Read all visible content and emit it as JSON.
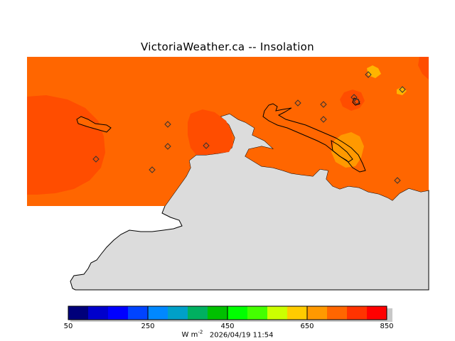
{
  "title": "VictoriaWeather.ca -- Insolation",
  "legend": {
    "ticks": [
      "50",
      "250",
      "450",
      "650",
      "850"
    ],
    "units_base": "W m",
    "units_exp": "-2",
    "timestamp": "2026/04/19 11:54",
    "colors": [
      "#00007a",
      "#0000cc",
      "#0000ff",
      "#0044ff",
      "#0088ff",
      "#00a0c8",
      "#00b060",
      "#00c000",
      "#00ff00",
      "#44ff00",
      "#ccff00",
      "#ffcc00",
      "#ff9900",
      "#ff6600",
      "#ff3300",
      "#ff0000"
    ]
  },
  "map_colors": {
    "land": "#dcdcdc",
    "field_main": "#ff6600",
    "field_high": "#ff4d00",
    "field_low": "#ff9900",
    "field_lowest": "#ffb400"
  }
}
